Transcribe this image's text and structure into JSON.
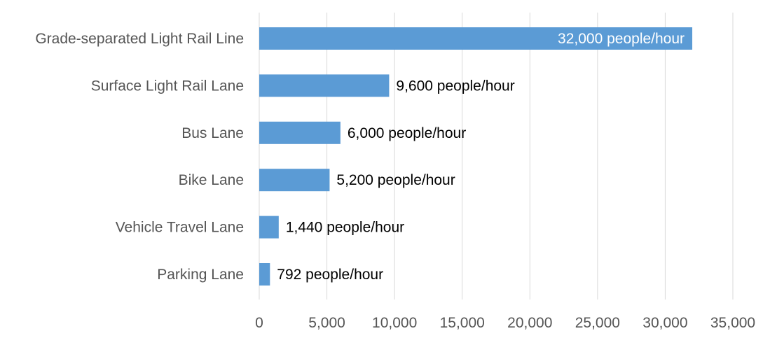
{
  "chart_data": {
    "type": "bar",
    "orientation": "horizontal",
    "categories": [
      "Grade-separated Light Rail Line",
      "Surface Light Rail Lane",
      "Bus Lane",
      "Bike Lane",
      "Vehicle Travel Lane",
      "Parking Lane"
    ],
    "values": [
      32000,
      9600,
      6000,
      5200,
      1440,
      792
    ],
    "data_labels": [
      "32,000 people/hour",
      "9,600 people/hour",
      "6,000 people/hour",
      "5,200 people/hour",
      "1,440 people/hour",
      "792 people/hour"
    ],
    "x_ticks": [
      0,
      5000,
      10000,
      15000,
      20000,
      25000,
      30000,
      35000
    ],
    "x_tick_labels": [
      "0",
      "5,000",
      "10,000",
      "15,000",
      "20,000",
      "25,000",
      "30,000",
      "35,000"
    ],
    "xlim": [
      0,
      35000
    ],
    "grid": true,
    "legend": "none",
    "title": "",
    "xlabel": "",
    "ylabel": "",
    "colors": {
      "bar": "#5b9bd5",
      "label_inside": "#ffffff",
      "label_outside": "#000000",
      "grid": "#d9d9d9",
      "axis_text": "#555555"
    }
  }
}
